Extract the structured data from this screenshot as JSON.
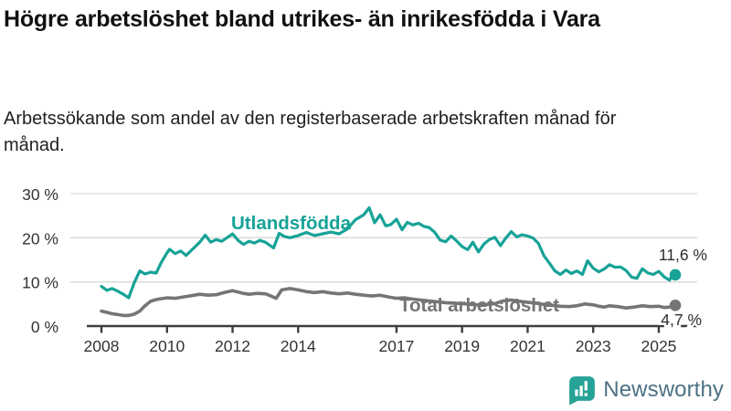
{
  "header": {
    "title": "Högre arbetslöshet bland utrikes- än inrikesfödda i Vara",
    "subtitle": "Arbetssökande som andel av den registerbaserade arbetskraften månad för månad."
  },
  "chart_data": {
    "type": "line",
    "title": "Högre arbetslöshet bland utrikes- än inrikesfödda i Vara",
    "subtitle": "Arbetssökande som andel av den registerbaserade arbetskraften månad för månad.",
    "x_axis": {
      "ticks": [
        2008,
        2010,
        2012,
        2014,
        2017,
        2019,
        2021,
        2023,
        2025
      ],
      "tick_labels": [
        "2008",
        "2010",
        "2012",
        "2014",
        "2017",
        "2019",
        "2021",
        "2023",
        "2025"
      ],
      "range": [
        2007.55,
        2026.2
      ],
      "grid": false
    },
    "y_axis": {
      "ticks": [
        0,
        10,
        20,
        30
      ],
      "tick_labels": [
        "0 %",
        "10 %",
        "20 %",
        "30 %"
      ],
      "range": [
        0,
        30
      ],
      "unit": "%",
      "grid": true
    },
    "legend_position": "inline-labels",
    "series": [
      {
        "name": "Utlandsfödda",
        "color": "#17a297",
        "end_value": 11.6,
        "end_label": "11,6 %",
        "points": [
          [
            2008.0,
            9.0
          ],
          [
            2008.17,
            8.1
          ],
          [
            2008.33,
            8.5
          ],
          [
            2008.5,
            7.9
          ],
          [
            2008.67,
            7.2
          ],
          [
            2008.83,
            6.4
          ],
          [
            2009.0,
            9.8
          ],
          [
            2009.17,
            12.5
          ],
          [
            2009.33,
            11.8
          ],
          [
            2009.5,
            12.2
          ],
          [
            2009.67,
            12.0
          ],
          [
            2009.83,
            14.5
          ],
          [
            2010.0,
            16.6
          ],
          [
            2010.08,
            17.4
          ],
          [
            2010.25,
            16.4
          ],
          [
            2010.42,
            17.0
          ],
          [
            2010.58,
            16.0
          ],
          [
            2010.75,
            17.2
          ],
          [
            2011.0,
            19.0
          ],
          [
            2011.17,
            20.6
          ],
          [
            2011.33,
            19.0
          ],
          [
            2011.5,
            19.6
          ],
          [
            2011.67,
            19.2
          ],
          [
            2011.83,
            20.0
          ],
          [
            2012.0,
            20.9
          ],
          [
            2012.17,
            19.4
          ],
          [
            2012.33,
            18.5
          ],
          [
            2012.5,
            19.2
          ],
          [
            2012.67,
            18.8
          ],
          [
            2012.83,
            19.4
          ],
          [
            2013.0,
            19.0
          ],
          [
            2013.25,
            17.7
          ],
          [
            2013.42,
            21.0
          ],
          [
            2013.58,
            20.3
          ],
          [
            2013.75,
            20.0
          ],
          [
            2014.0,
            20.5
          ],
          [
            2014.25,
            21.2
          ],
          [
            2014.5,
            20.5
          ],
          [
            2014.75,
            20.9
          ],
          [
            2015.0,
            21.3
          ],
          [
            2015.25,
            20.9
          ],
          [
            2015.5,
            22.0
          ],
          [
            2015.75,
            24.1
          ],
          [
            2016.0,
            25.2
          ],
          [
            2016.17,
            26.8
          ],
          [
            2016.33,
            23.4
          ],
          [
            2016.5,
            25.2
          ],
          [
            2016.67,
            22.7
          ],
          [
            2016.83,
            23.0
          ],
          [
            2017.0,
            24.2
          ],
          [
            2017.17,
            21.8
          ],
          [
            2017.33,
            23.5
          ],
          [
            2017.5,
            22.9
          ],
          [
            2017.67,
            23.3
          ],
          [
            2017.83,
            22.6
          ],
          [
            2018.0,
            22.3
          ],
          [
            2018.17,
            21.2
          ],
          [
            2018.33,
            19.5
          ],
          [
            2018.5,
            19.1
          ],
          [
            2018.67,
            20.4
          ],
          [
            2018.83,
            19.3
          ],
          [
            2019.0,
            18.0
          ],
          [
            2019.17,
            17.3
          ],
          [
            2019.33,
            19.0
          ],
          [
            2019.5,
            16.8
          ],
          [
            2019.67,
            18.6
          ],
          [
            2019.83,
            19.6
          ],
          [
            2020.0,
            20.1
          ],
          [
            2020.17,
            18.2
          ],
          [
            2020.33,
            19.9
          ],
          [
            2020.5,
            21.4
          ],
          [
            2020.67,
            20.2
          ],
          [
            2020.83,
            20.7
          ],
          [
            2021.0,
            20.4
          ],
          [
            2021.17,
            19.9
          ],
          [
            2021.33,
            18.7
          ],
          [
            2021.5,
            15.9
          ],
          [
            2021.67,
            14.2
          ],
          [
            2021.83,
            12.5
          ],
          [
            2022.0,
            11.7
          ],
          [
            2022.17,
            12.7
          ],
          [
            2022.33,
            11.9
          ],
          [
            2022.5,
            12.5
          ],
          [
            2022.67,
            11.7
          ],
          [
            2022.83,
            14.8
          ],
          [
            2023.0,
            13.1
          ],
          [
            2023.17,
            12.3
          ],
          [
            2023.33,
            12.9
          ],
          [
            2023.5,
            13.9
          ],
          [
            2023.67,
            13.3
          ],
          [
            2023.83,
            13.4
          ],
          [
            2024.0,
            12.6
          ],
          [
            2024.17,
            11.1
          ],
          [
            2024.33,
            10.8
          ],
          [
            2024.5,
            13.0
          ],
          [
            2024.67,
            12.0
          ],
          [
            2024.83,
            11.7
          ],
          [
            2025.0,
            12.4
          ],
          [
            2025.17,
            11.1
          ],
          [
            2025.33,
            10.4
          ],
          [
            2025.42,
            11.6
          ]
        ]
      },
      {
        "name": "Total arbetslöshet",
        "color": "#757575",
        "end_value": 4.7,
        "end_label": "4,7 %",
        "points": [
          [
            2008.0,
            3.4
          ],
          [
            2008.17,
            3.1
          ],
          [
            2008.33,
            2.8
          ],
          [
            2008.5,
            2.6
          ],
          [
            2008.67,
            2.4
          ],
          [
            2008.83,
            2.4
          ],
          [
            2009.0,
            2.7
          ],
          [
            2009.17,
            3.4
          ],
          [
            2009.33,
            4.6
          ],
          [
            2009.5,
            5.6
          ],
          [
            2009.67,
            6.0
          ],
          [
            2009.83,
            6.2
          ],
          [
            2010.0,
            6.4
          ],
          [
            2010.25,
            6.3
          ],
          [
            2010.5,
            6.6
          ],
          [
            2010.75,
            6.9
          ],
          [
            2011.0,
            7.2
          ],
          [
            2011.25,
            7.0
          ],
          [
            2011.5,
            7.1
          ],
          [
            2011.75,
            7.6
          ],
          [
            2012.0,
            8.0
          ],
          [
            2012.17,
            7.7
          ],
          [
            2012.33,
            7.4
          ],
          [
            2012.5,
            7.2
          ],
          [
            2012.75,
            7.4
          ],
          [
            2013.0,
            7.3
          ],
          [
            2013.17,
            6.8
          ],
          [
            2013.33,
            6.3
          ],
          [
            2013.5,
            8.2
          ],
          [
            2013.75,
            8.5
          ],
          [
            2014.0,
            8.2
          ],
          [
            2014.25,
            7.8
          ],
          [
            2014.5,
            7.6
          ],
          [
            2014.75,
            7.8
          ],
          [
            2015.0,
            7.5
          ],
          [
            2015.25,
            7.3
          ],
          [
            2015.5,
            7.5
          ],
          [
            2015.75,
            7.2
          ],
          [
            2016.0,
            7.0
          ],
          [
            2016.25,
            6.8
          ],
          [
            2016.5,
            7.0
          ],
          [
            2016.75,
            6.6
          ],
          [
            2017.0,
            6.3
          ],
          [
            2017.25,
            6.4
          ],
          [
            2017.5,
            6.1
          ],
          [
            2017.75,
            5.9
          ],
          [
            2018.0,
            5.7
          ],
          [
            2018.25,
            5.5
          ],
          [
            2018.5,
            5.3
          ],
          [
            2018.75,
            5.2
          ],
          [
            2019.0,
            5.1
          ],
          [
            2019.25,
            4.9
          ],
          [
            2019.5,
            4.8
          ],
          [
            2019.75,
            4.9
          ],
          [
            2020.0,
            5.1
          ],
          [
            2020.25,
            5.7
          ],
          [
            2020.5,
            5.9
          ],
          [
            2020.75,
            5.6
          ],
          [
            2021.0,
            5.4
          ],
          [
            2021.25,
            5.2
          ],
          [
            2021.5,
            4.9
          ],
          [
            2021.75,
            4.7
          ],
          [
            2022.0,
            4.5
          ],
          [
            2022.25,
            4.4
          ],
          [
            2022.5,
            4.6
          ],
          [
            2022.75,
            5.0
          ],
          [
            2023.0,
            4.8
          ],
          [
            2023.17,
            4.5
          ],
          [
            2023.33,
            4.3
          ],
          [
            2023.5,
            4.6
          ],
          [
            2023.75,
            4.4
          ],
          [
            2024.0,
            4.1
          ],
          [
            2024.25,
            4.3
          ],
          [
            2024.5,
            4.6
          ],
          [
            2024.75,
            4.4
          ],
          [
            2025.0,
            4.5
          ],
          [
            2025.17,
            4.2
          ],
          [
            2025.33,
            4.3
          ],
          [
            2025.42,
            4.7
          ]
        ]
      }
    ],
    "colors": {
      "grid": "#d8d8d8",
      "axis": "#3d3d3d",
      "tick_text": "#333333",
      "end_label_text": "#2e2e2e"
    }
  },
  "footer": {
    "brand": "Newsworthy",
    "brand_color": "#4d7183",
    "logo_color": "#27a296"
  }
}
